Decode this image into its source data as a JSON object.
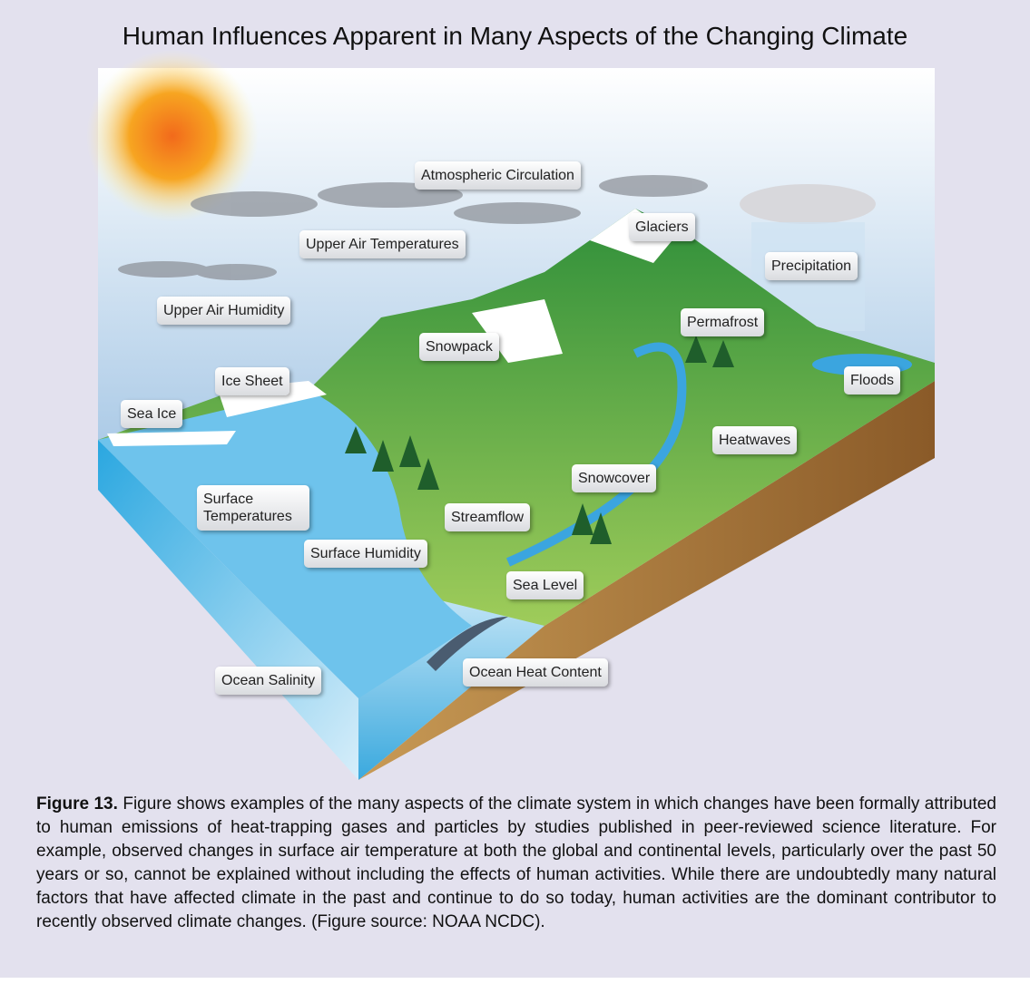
{
  "title": "Human Influences Apparent in Many Aspects of the Changing Climate",
  "labels": [
    "Atmospheric Circulation",
    "Glaciers",
    "Upper Air Temperatures",
    "Precipitation",
    "Upper Air Humidity",
    "Permafrost",
    "Snowpack",
    "Ice Sheet",
    "Floods",
    "Sea Ice",
    "Heatwaves",
    "Snowcover",
    "Surface Temperatures",
    "Streamflow",
    "Surface Humidity",
    "Sea Level",
    "Ocean Heat Content",
    "Ocean Salinity"
  ],
  "caption": {
    "figure_label": "Figure 13.",
    "text": "Figure shows examples of the many aspects of the climate system in which changes have been formally attributed to human emissions of heat-trapping gases and particles by studies published in peer-reviewed science literature. For example, observed changes in surface air temperature at both the global and continental levels, particularly over the past 50 years or so, cannot be explained without including the effects of human activities. While there are undoubtedly many natural factors that have affected climate in the past and continue to do so today, human activities are the dominant contributor to recently observed climate changes. (Figure source: NOAA NCDC)."
  }
}
